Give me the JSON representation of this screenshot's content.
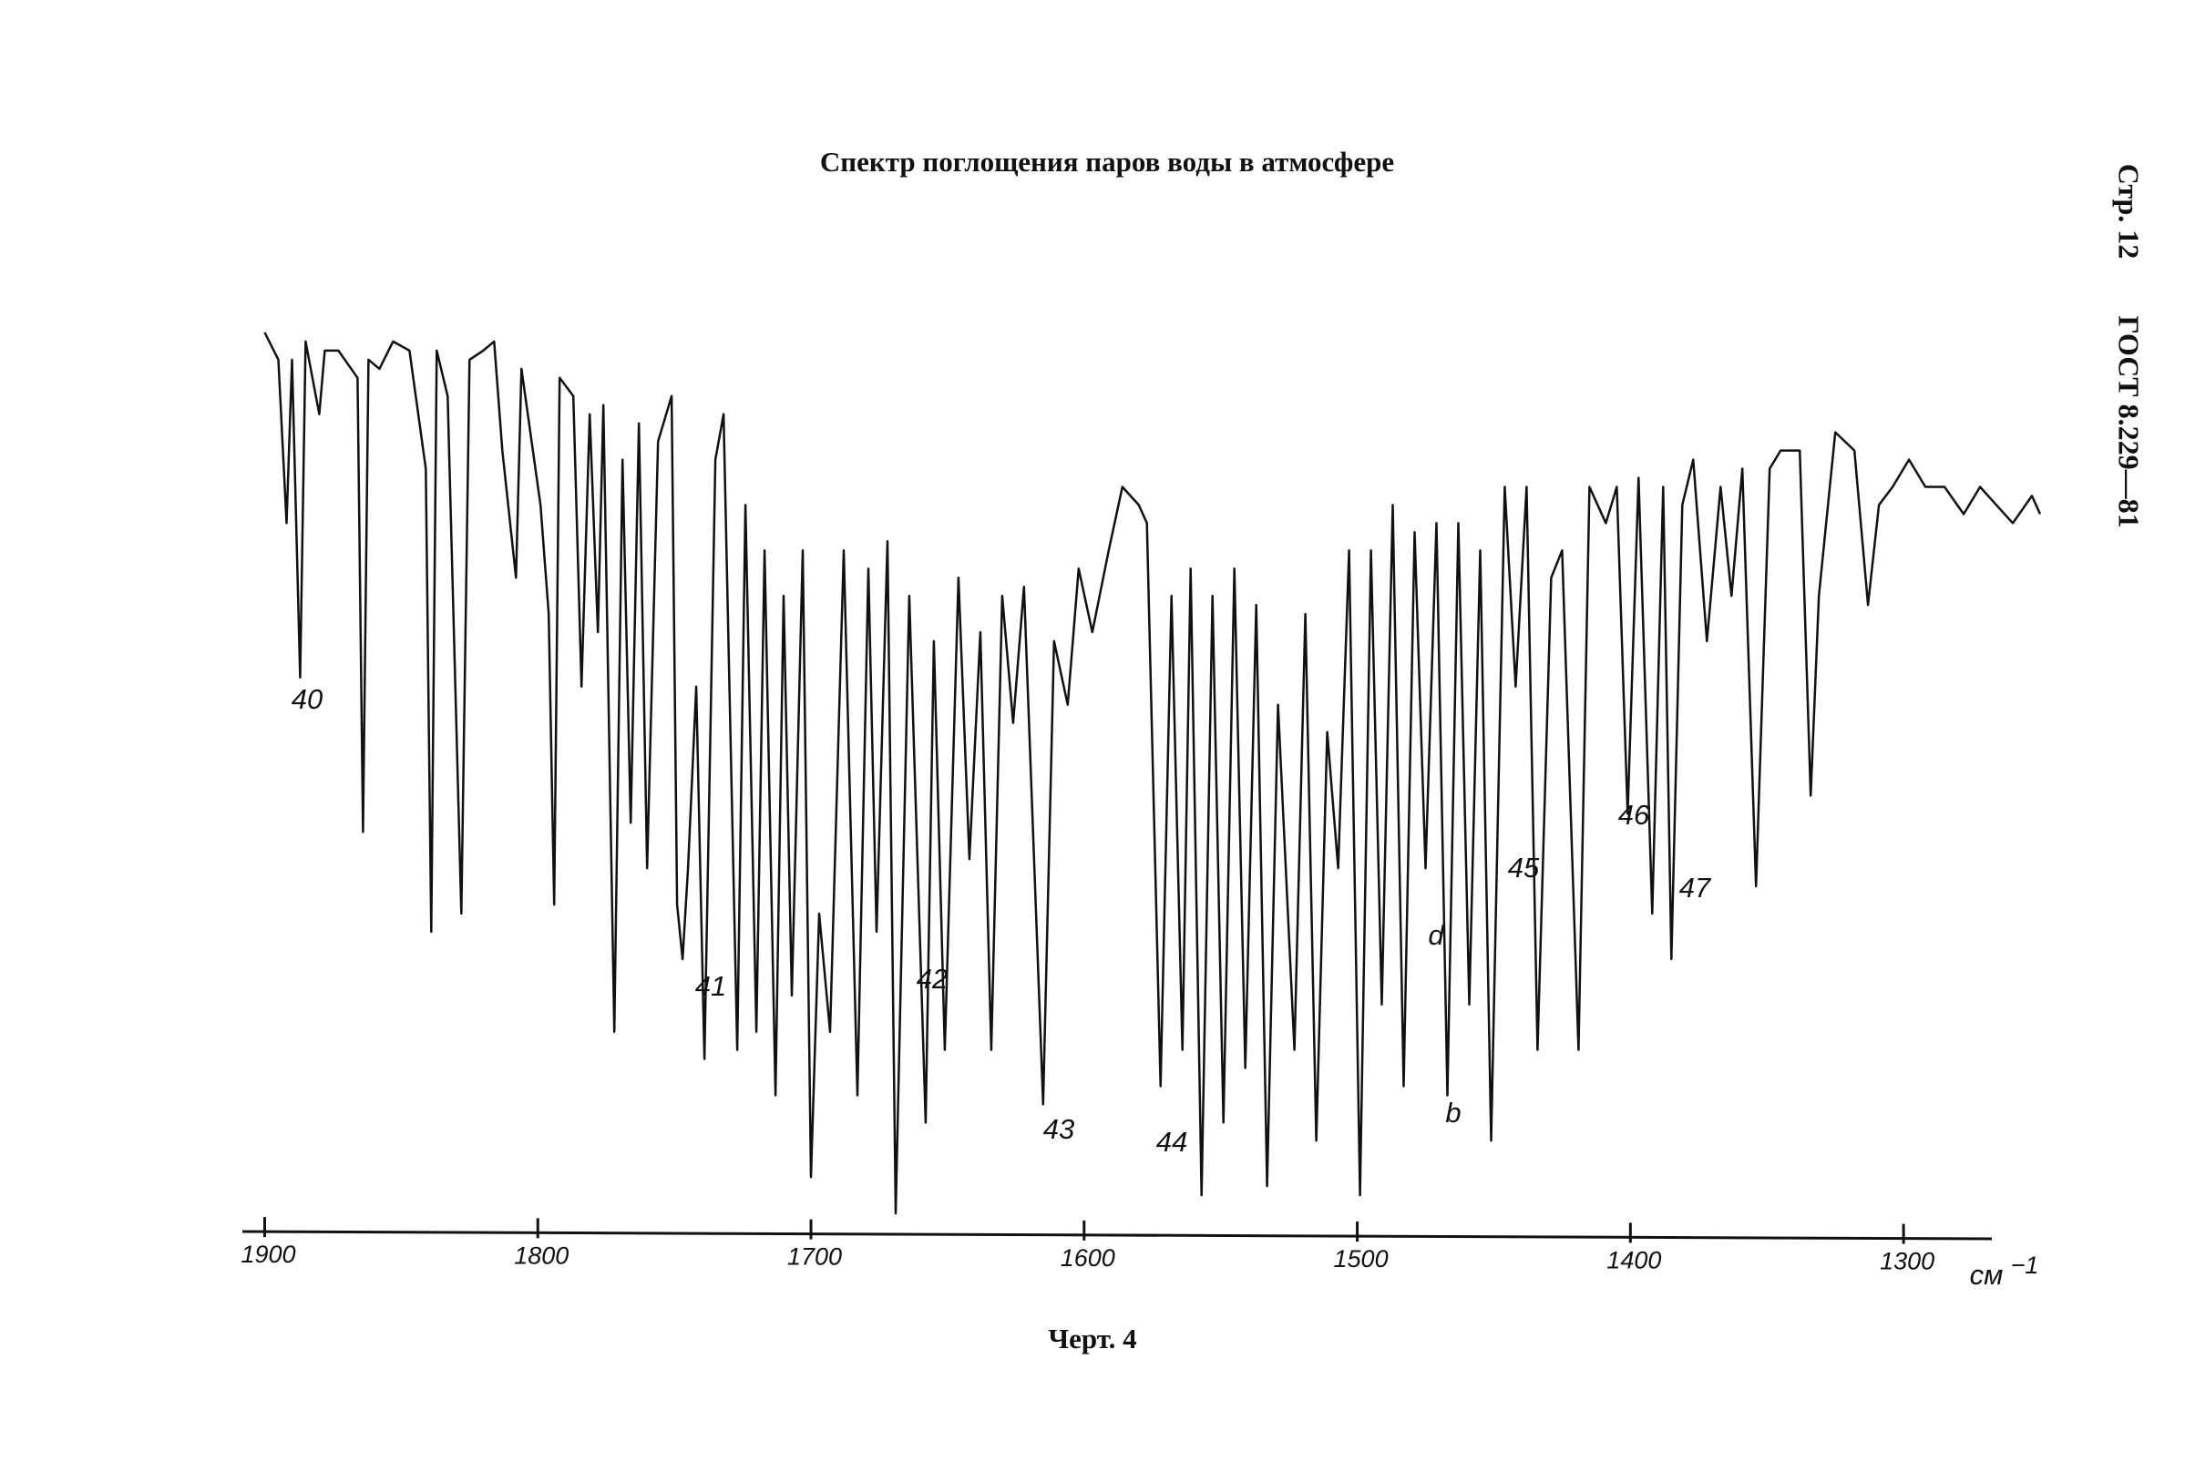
{
  "document": {
    "page_header": "Стр. 12",
    "standard": "ГОСТ 8.229—81",
    "caption": "Черт. 4"
  },
  "chart_data": {
    "type": "line",
    "title": "Спектр поглощения паров воды в атмосфере",
    "x_label": "см",
    "x_label_exponent": "−1",
    "color": "#111111",
    "x": [
      1900,
      1895,
      1892,
      1890,
      1887,
      1885,
      1880,
      1878,
      1873,
      1866,
      1864,
      1862,
      1858,
      1853,
      1847,
      1841,
      1839,
      1837,
      1833,
      1828,
      1825,
      1820,
      1816,
      1813,
      1808,
      1806,
      1799,
      1796,
      1794,
      1792,
      1787,
      1784,
      1781,
      1778,
      1776,
      1772,
      1769,
      1766,
      1763,
      1760,
      1756,
      1751,
      1749,
      1747,
      1745,
      1742,
      1739,
      1735,
      1732,
      1727,
      1724,
      1720,
      1717,
      1713,
      1710,
      1707,
      1703,
      1700,
      1697,
      1693,
      1688,
      1683,
      1679,
      1676,
      1672,
      1669,
      1664,
      1658,
      1655,
      1651,
      1646,
      1642,
      1638,
      1634,
      1630,
      1626,
      1622,
      1615,
      1611,
      1606,
      1602,
      1597,
      1591,
      1586,
      1580,
      1577,
      1572,
      1568,
      1564,
      1561,
      1557,
      1553,
      1549,
      1545,
      1541,
      1537,
      1533,
      1529,
      1523,
      1519,
      1515,
      1511,
      1507,
      1503,
      1499,
      1495,
      1491,
      1487,
      1483,
      1479,
      1475,
      1471,
      1467,
      1463,
      1459,
      1455,
      1451,
      1446,
      1442,
      1438,
      1434,
      1429,
      1425,
      1419,
      1415,
      1409,
      1405,
      1401,
      1397,
      1392,
      1388,
      1385,
      1381,
      1377,
      1372,
      1367,
      1363,
      1359,
      1354,
      1349,
      1345,
      1338,
      1334,
      1331,
      1325,
      1318,
      1313,
      1309,
      1304,
      1298,
      1292,
      1285,
      1278,
      1272,
      1266,
      1260,
      1253,
      1250
    ],
    "values": [
      99,
      96,
      78,
      96,
      61,
      98,
      90,
      97,
      97,
      94,
      44,
      96,
      95,
      98,
      97,
      84,
      33,
      97,
      92,
      35,
      96,
      97,
      98,
      86,
      72,
      95,
      80,
      68,
      36,
      94,
      92,
      60,
      90,
      66,
      91,
      22,
      85,
      45,
      89,
      40,
      87,
      92,
      36,
      30,
      40,
      60,
      19,
      85,
      90,
      20,
      80,
      22,
      75,
      15,
      70,
      26,
      75,
      6,
      35,
      22,
      75,
      15,
      73,
      33,
      76,
      2,
      70,
      12,
      65,
      20,
      72,
      41,
      66,
      20,
      70,
      56,
      71,
      14,
      65,
      58,
      73,
      66,
      75,
      82,
      80,
      78,
      16,
      70,
      20,
      73,
      4,
      70,
      12,
      73,
      18,
      69,
      5,
      58,
      20,
      68,
      10,
      55,
      40,
      75,
      4,
      75,
      25,
      80,
      16,
      77,
      40,
      78,
      15,
      78,
      25,
      75,
      10,
      82,
      60,
      82,
      20,
      72,
      75,
      20,
      82,
      78,
      82,
      46,
      83,
      35,
      82,
      30,
      80,
      85,
      65,
      82,
      70,
      84,
      38,
      84,
      86,
      86,
      48,
      70,
      88,
      86,
      69,
      80,
      82,
      85,
      82,
      82,
      79,
      82,
      80,
      78,
      81,
      79
    ],
    "xlim": [
      1910,
      1250
    ],
    "ylim": [
      0,
      100
    ],
    "xticks": [
      1900,
      1800,
      1700,
      1600,
      1500,
      1400,
      1300
    ],
    "annotations": [
      "40",
      "41",
      "42",
      "43",
      "44",
      "45",
      "d",
      "b",
      "46",
      "47"
    ]
  }
}
